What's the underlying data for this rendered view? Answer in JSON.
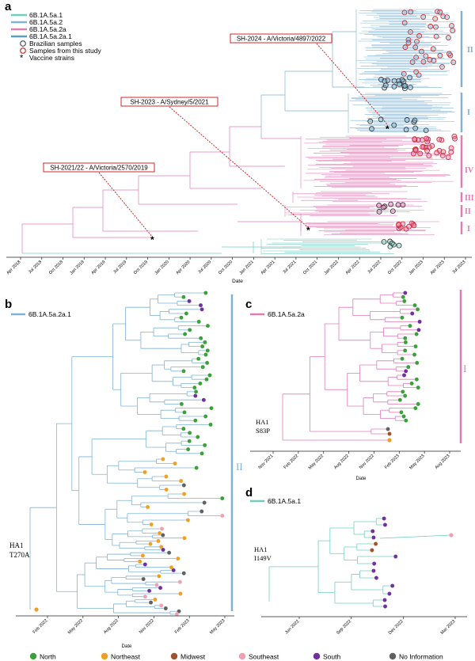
{
  "colors": {
    "blue": "#7fb3d5",
    "blue_dark": "#5a9ac6",
    "pink": "#e07bb8",
    "teal": "#6fcfbf",
    "red": "#d02828",
    "north": "#3aa13a",
    "northeast": "#f0a020",
    "midwest": "#a0522d",
    "southeast": "#f0a0b0",
    "south": "#7030a0",
    "noinfo": "#606060"
  },
  "panel_a": {
    "label": "a",
    "legend": {
      "lineages": [
        "6B.1A.5a.1",
        "6B.1A.5a.2",
        "6B.1A.5a.2a",
        "6B.1A.5a.2a.1"
      ],
      "brazilian": "Brazilian samples",
      "study": "Samples from this study",
      "vaccine": "Vaccine strains"
    },
    "vaccines": [
      "SH-2021/22 - A/Victoria/2570/2019",
      "SH-2023 - A/Sydney/5/2021",
      "SH-2024 - A/Victoria/4897/2022"
    ],
    "clades": [
      "II",
      "I",
      "IV",
      "III",
      "II",
      "I"
    ],
    "xticks": [
      "Apr 2018",
      "Jul 2018",
      "Oct 2018",
      "Jan 2019",
      "Apr 2019",
      "Jul 2019",
      "Oct 2019",
      "Jan 2020",
      "Apr 2020",
      "Jul 2020",
      "Oct 2020",
      "Jan 2021",
      "Apr 2021",
      "Jul 2021",
      "Oct 2021",
      "Jan 2022",
      "Apr 2022",
      "Jul 2022",
      "Oct 2022",
      "Jan 2023",
      "Apr 2023",
      "Jul 2023"
    ],
    "xlabel": "Date"
  },
  "panel_b": {
    "label": "b",
    "lineage": "6B.1A.5a.2a.1",
    "mutation_line1": "HA1",
    "mutation_line2": "T270A",
    "clade": "II",
    "xticks": [
      "Feb 2022",
      "May 2022",
      "Aug 2022",
      "Nov 2022",
      "Feb 2023",
      "May 2023"
    ],
    "xlabel": "Date"
  },
  "panel_c": {
    "label": "c",
    "lineage": "6B.1A.5a.2a",
    "mutation_line1": "HA1",
    "mutation_line2": "S83P",
    "clade": "I",
    "xticks": [
      "Nov 2021",
      "Feb 2022",
      "May 2022",
      "Aug 2022",
      "Nov 2022",
      "Feb 2023",
      "May 2023",
      "Aug 2023"
    ],
    "xlabel": "Date"
  },
  "panel_d": {
    "label": "d",
    "lineage": "6B.1A.5a.1",
    "mutation_line1": "HA1",
    "mutation_line2": "I149V",
    "xticks": [
      "Jun 2022",
      "Sep 2022",
      "Dec 2022",
      "Mar 2023"
    ]
  },
  "regions": [
    "North",
    "Northeast",
    "Midwest",
    "Southeast",
    "South",
    "No Information"
  ]
}
